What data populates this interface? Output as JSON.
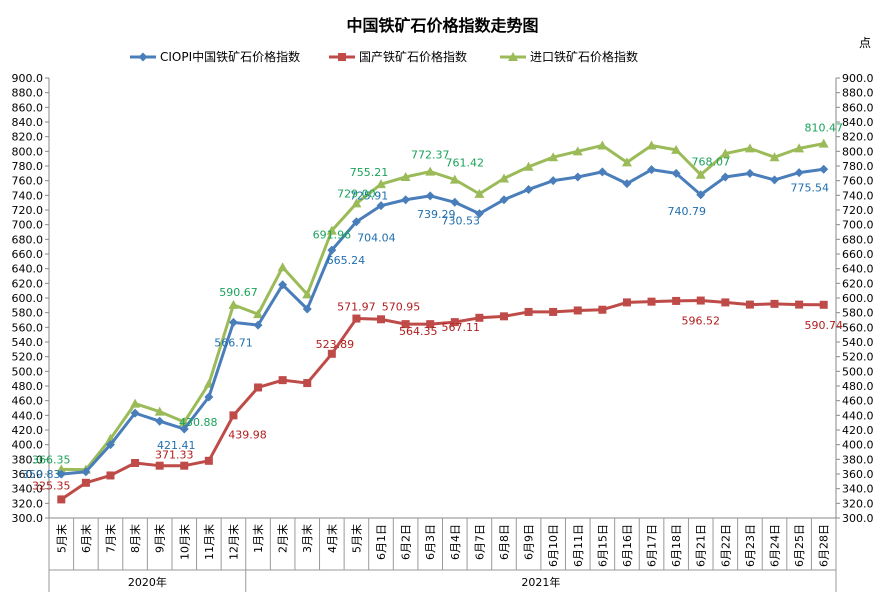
{
  "chart_data": {
    "type": "line",
    "title": "中国铁矿石价格指数走势图",
    "unit_label": "点",
    "ylim": [
      300,
      900
    ],
    "ystep": 20,
    "grid": false,
    "legend_position": "top",
    "categories": [
      "5月末",
      "6月末",
      "7月末",
      "8月末",
      "9月末",
      "10月末",
      "11月末",
      "12月末",
      "1月末",
      "2月末",
      "3月末",
      "4月末",
      "5月末",
      "6月1日",
      "6月2日",
      "6月3日",
      "6月4日",
      "6月7日",
      "6月8日",
      "6月9日",
      "6月10日",
      "6月11日",
      "6月15日",
      "6月16日",
      "6月17日",
      "6月18日",
      "6月21日",
      "6月22日",
      "6月23日",
      "6月24日",
      "6月25日",
      "6月28日"
    ],
    "year_groups": [
      {
        "label": "2020年",
        "count": 8
      },
      {
        "label": "2021年",
        "count": 24
      }
    ],
    "series": [
      {
        "name": "CIOPI中国铁矿石价格指数",
        "color": "#4A7EBB",
        "marker": "diamond",
        "label_color": "#1F6FAF",
        "values": [
          359.83,
          363,
          400,
          443,
          432,
          421.41,
          465,
          566.71,
          563,
          618,
          585,
          665.24,
          704.04,
          725.91,
          734,
          739.29,
          730.53,
          715,
          734,
          748,
          760,
          765,
          772,
          756,
          775,
          770,
          740.79,
          765,
          770,
          761,
          771,
          775.54
        ],
        "labels": {
          "0": "359.83",
          "5": "421.41",
          "7": "566.71",
          "11": "665.24",
          "12": "704.04",
          "13": "725.91",
          "15": "739.29",
          "16": "730.53",
          "26": "740.79",
          "31": "775.54"
        }
      },
      {
        "name": "国产铁矿石价格指数",
        "color": "#BE4B48",
        "marker": "square",
        "label_color": "#B01E1E",
        "values": [
          325.35,
          348,
          358,
          375,
          371.33,
          371.33,
          378,
          439.98,
          478,
          488,
          484,
          523.89,
          571.97,
          570.95,
          564.35,
          564.35,
          567.11,
          573,
          575,
          581,
          581,
          583,
          584,
          594,
          595,
          596,
          596.52,
          594,
          591,
          592,
          591,
          590.74
        ],
        "labels": {
          "0": "325.35",
          "5": "371.33",
          "7": "439.98",
          "11": "523.89",
          "12": "571.97",
          "13": "570.95",
          "15": "564.35",
          "16": "567.11",
          "26": "596.52",
          "31": "590.74"
        }
      },
      {
        "name": "进口铁矿石价格指数",
        "color": "#9BBB59",
        "marker": "triangle",
        "label_color": "#1AA35A",
        "values": [
          366.35,
          366,
          408,
          456,
          445,
          430.88,
          483,
          590.67,
          578,
          642,
          605,
          691.96,
          729.0,
          755.21,
          765,
          772.37,
          761.42,
          742,
          763,
          779,
          792,
          800,
          808,
          785,
          808,
          802,
          768.07,
          797,
          804,
          792,
          804,
          810.47
        ],
        "labels": {
          "0": "366.35",
          "5": "430.88",
          "7": "590.67",
          "11": "691.96",
          "12": "729.00",
          "13": "755.21",
          "15": "772.37",
          "16": "761.42",
          "26": "768.07",
          "31": "810.47"
        }
      }
    ]
  }
}
